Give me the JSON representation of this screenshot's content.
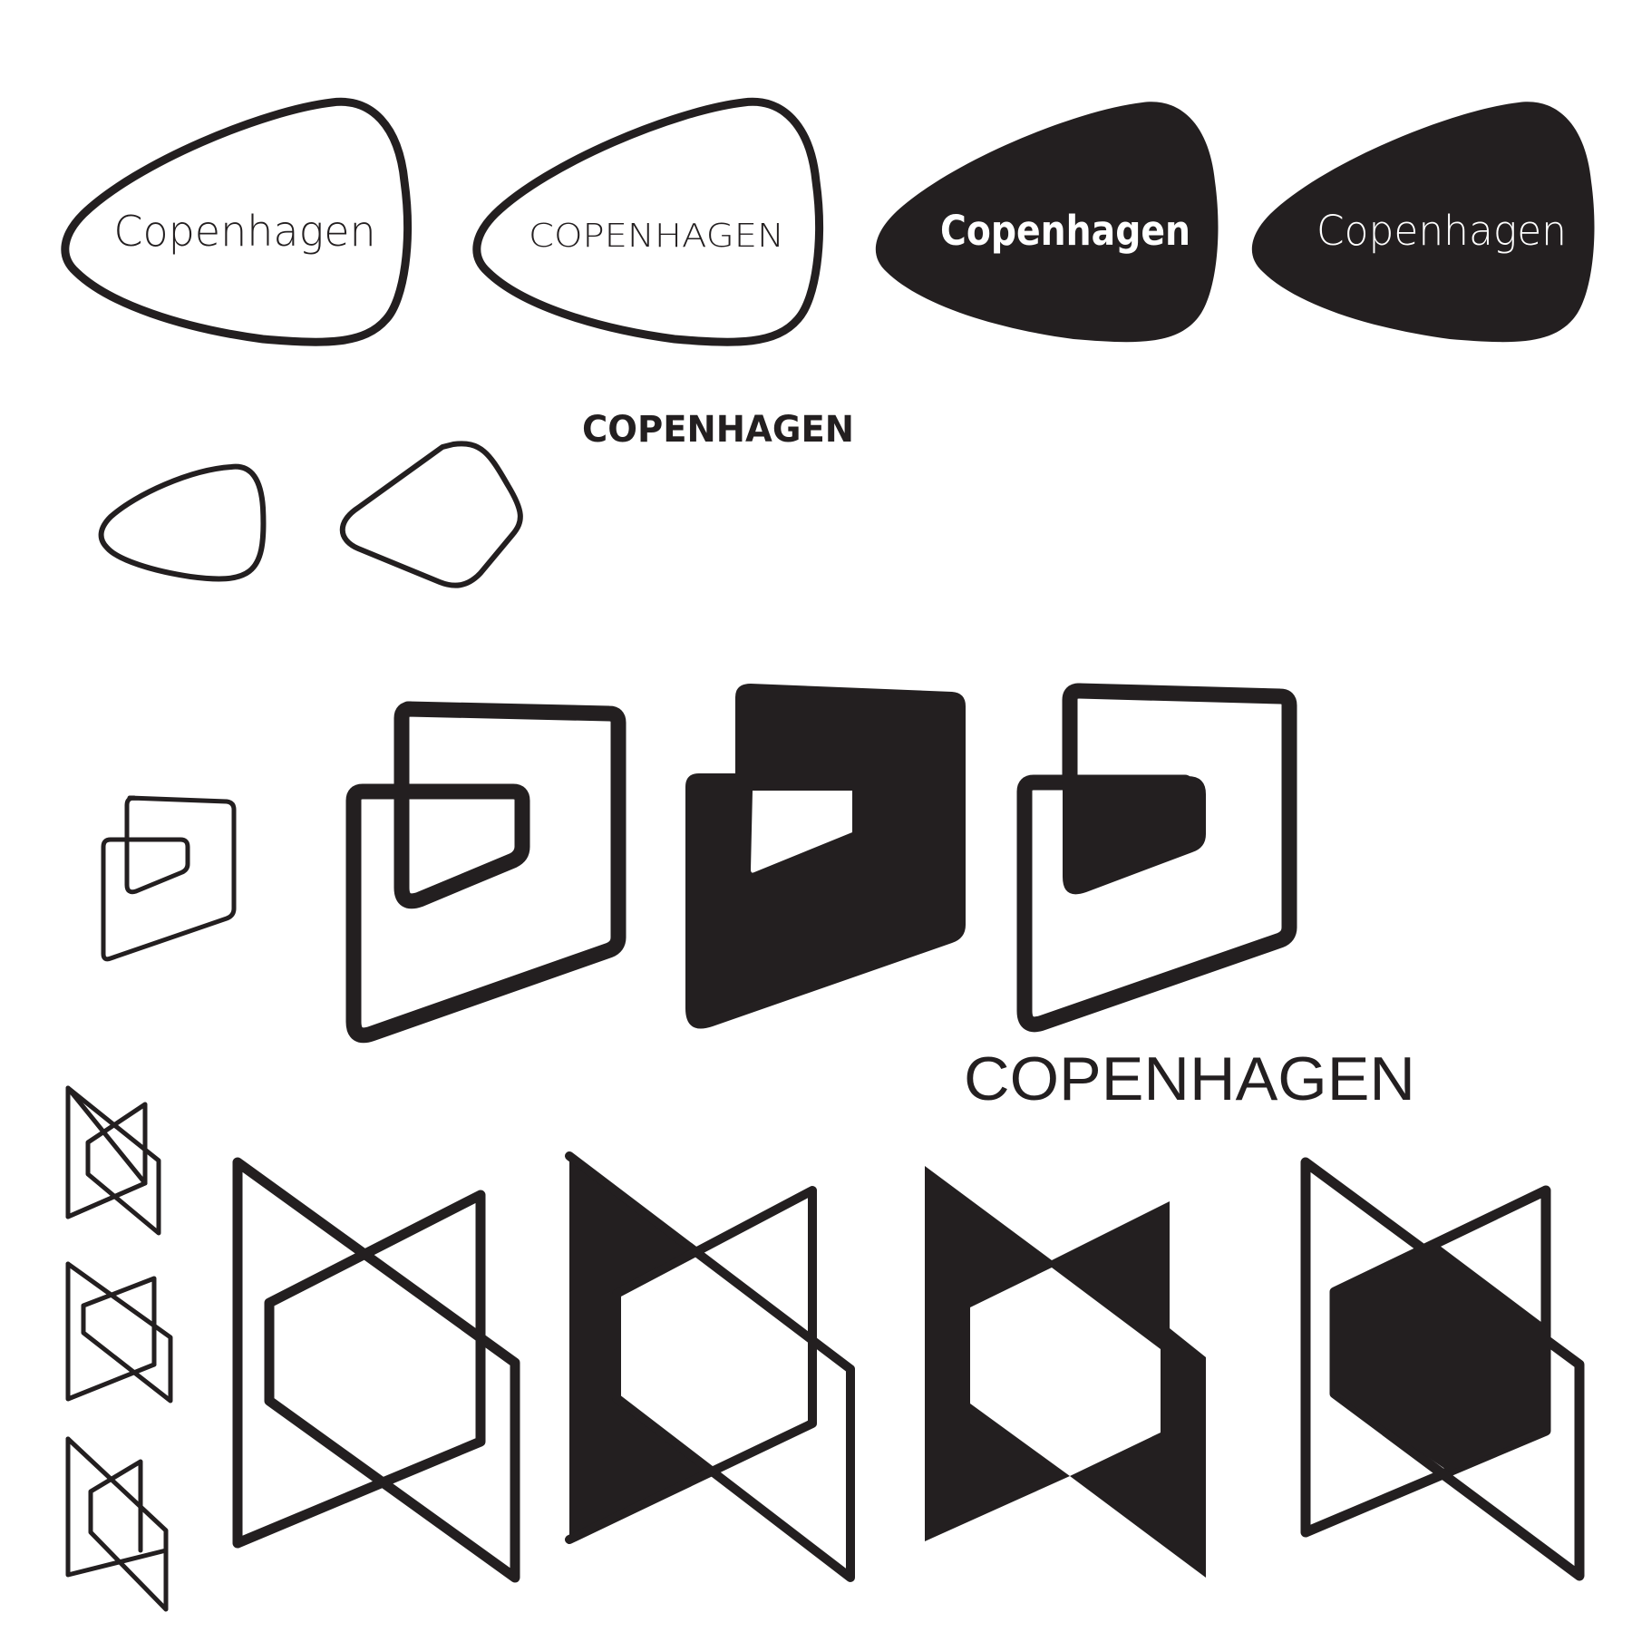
{
  "sheet": {
    "wordmarks": {
      "pebble_outline_mixedcase": "Copenhagen",
      "pebble_outline_caps": "COPENHAGEN",
      "pebble_solid_bold": "Copenhagen",
      "pebble_solid_light": "Copenhagen",
      "standalone_geometric_caps": "COPENHAGEN",
      "standalone_grotesk_caps": "COPENHAGEN"
    },
    "colors": {
      "ink": "#231f20",
      "paper": "#ffffff"
    }
  }
}
